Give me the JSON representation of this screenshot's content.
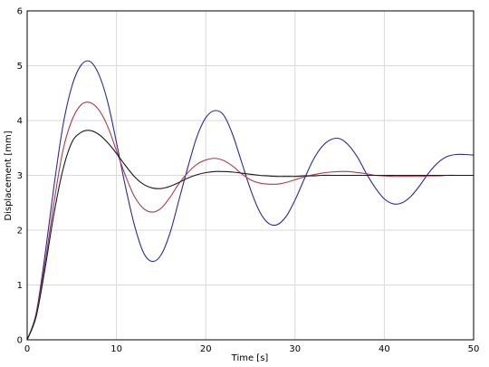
{
  "chart_data": {
    "type": "line",
    "title": "",
    "xlabel": "Time [s]",
    "ylabel": "Displacement [mm]",
    "xlim": [
      0,
      50
    ],
    "ylim": [
      0,
      6
    ],
    "xticks": [
      "0",
      "10",
      "20",
      "30",
      "40",
      "50"
    ],
    "yticks": [
      "0",
      "1",
      "2",
      "3",
      "4",
      "5",
      "6"
    ],
    "grid": true,
    "legend": "none",
    "series": [
      {
        "color": "#2a2aa0",
        "x": [
          0,
          1,
          2,
          3,
          4,
          5,
          6,
          7,
          8,
          9,
          10,
          11,
          12,
          13,
          14,
          15,
          16,
          17,
          18,
          19,
          20,
          21,
          22,
          23,
          24,
          25,
          26,
          27,
          28,
          29,
          30,
          31,
          32,
          33,
          34,
          35,
          36,
          37,
          38,
          39,
          40,
          41,
          42,
          43,
          44,
          45,
          46,
          47,
          48,
          49,
          50
        ],
        "y": [
          0,
          0.48,
          1.55,
          2.8,
          3.9,
          4.62,
          5.0,
          5.08,
          4.85,
          4.35,
          3.6,
          2.8,
          2.1,
          1.6,
          1.43,
          1.55,
          1.95,
          2.55,
          3.15,
          3.7,
          4.05,
          4.18,
          4.1,
          3.75,
          3.25,
          2.75,
          2.35,
          2.13,
          2.1,
          2.25,
          2.55,
          2.92,
          3.27,
          3.52,
          3.65,
          3.67,
          3.55,
          3.33,
          3.03,
          2.77,
          2.57,
          2.48,
          2.5,
          2.62,
          2.82,
          3.05,
          3.23,
          3.34,
          3.38,
          3.38,
          3.37
        ]
      },
      {
        "color": "#b03a4a",
        "x": [
          0,
          1,
          2,
          3,
          4,
          5,
          6,
          7,
          8,
          9,
          10,
          11,
          12,
          13,
          14,
          15,
          16,
          17,
          18,
          19,
          20,
          21,
          22,
          23,
          24,
          25,
          26,
          27,
          28,
          29,
          30,
          31,
          32,
          33,
          34,
          35,
          36,
          37,
          38,
          39,
          40,
          41,
          42,
          43,
          44,
          45,
          46,
          47,
          48,
          49,
          50
        ],
        "y": [
          0,
          0.45,
          1.4,
          2.5,
          3.45,
          4.0,
          4.28,
          4.33,
          4.2,
          3.9,
          3.45,
          3.0,
          2.62,
          2.4,
          2.33,
          2.4,
          2.6,
          2.85,
          3.05,
          3.2,
          3.28,
          3.31,
          3.27,
          3.17,
          3.03,
          2.92,
          2.86,
          2.84,
          2.84,
          2.87,
          2.92,
          2.97,
          3.01,
          3.04,
          3.06,
          3.07,
          3.07,
          3.05,
          3.03,
          3.0,
          2.99,
          2.98,
          2.98,
          2.98,
          2.98,
          2.99,
          2.99,
          3.0,
          3.0,
          3.0,
          3.0
        ]
      },
      {
        "color": "#1a1a1a",
        "x": [
          0,
          1,
          2,
          3,
          4,
          5,
          6,
          7,
          8,
          9,
          10,
          11,
          12,
          13,
          14,
          15,
          16,
          17,
          18,
          19,
          20,
          21,
          22,
          23,
          24,
          25,
          26,
          27,
          28,
          29,
          30,
          31,
          32,
          33,
          34,
          35,
          36,
          37,
          38,
          39,
          40,
          41,
          42,
          43,
          44,
          45,
          46,
          47,
          48,
          49,
          50
        ],
        "y": [
          0,
          0.42,
          1.3,
          2.3,
          3.1,
          3.6,
          3.78,
          3.82,
          3.75,
          3.6,
          3.4,
          3.18,
          2.98,
          2.84,
          2.77,
          2.76,
          2.8,
          2.87,
          2.95,
          3.01,
          3.05,
          3.07,
          3.07,
          3.06,
          3.04,
          3.02,
          3.0,
          2.99,
          2.98,
          2.98,
          2.98,
          2.99,
          2.99,
          3.0,
          3.0,
          3.0,
          3.0,
          3.0,
          3.0,
          3.0,
          3.0,
          3.0,
          3.0,
          3.0,
          3.0,
          3.0,
          3.0,
          3.0,
          3.0,
          3.0,
          3.0
        ]
      }
    ]
  }
}
